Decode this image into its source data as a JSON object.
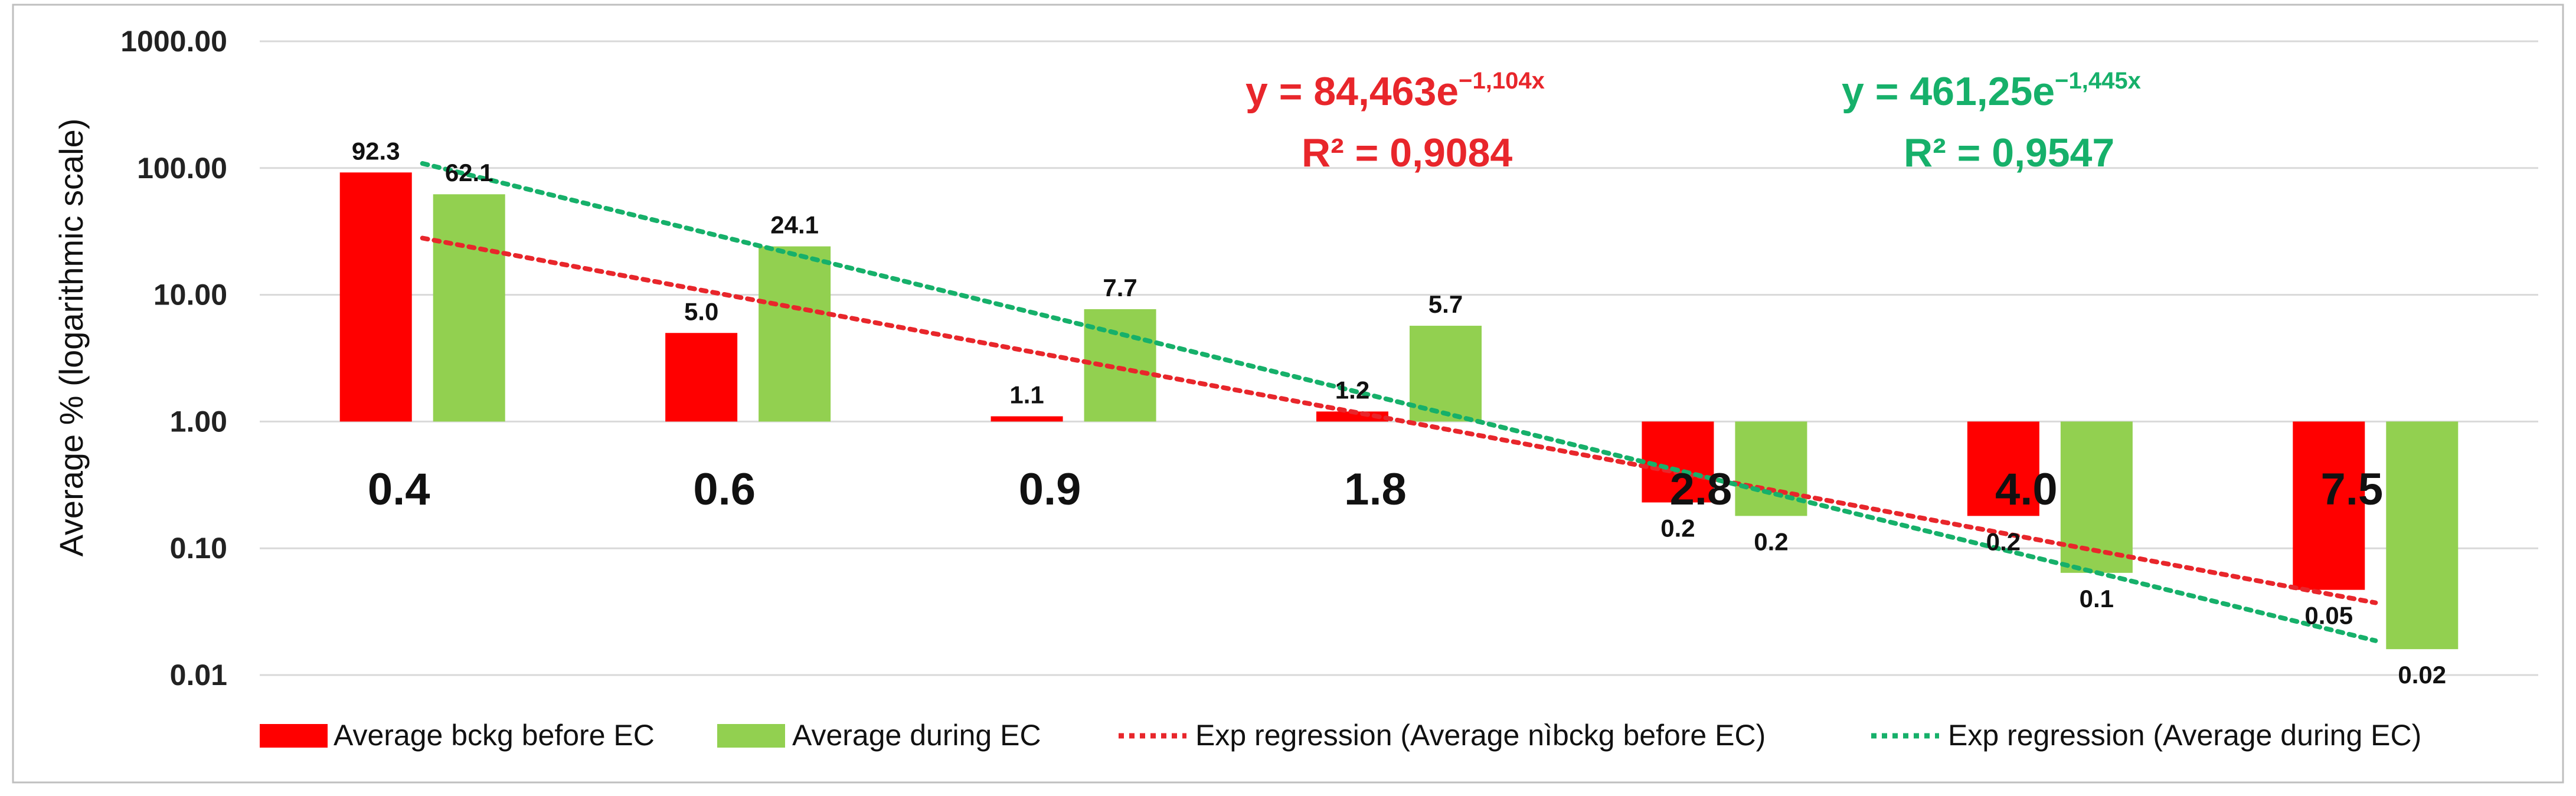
{
  "colors": {
    "before": "#ff0000",
    "during": "#92d050",
    "trend_before": "#e8262b",
    "trend_during": "#16b06a",
    "grid": "#d9d9d9",
    "frame": "#bfbfbf"
  },
  "chart_data": {
    "type": "bar",
    "scale": "log",
    "title": "",
    "xlabel": "",
    "ylabel": "Average % (logarithmic scale)",
    "ylim": [
      0.01,
      1000
    ],
    "baseline": 1,
    "y_ticks": [
      1000,
      100,
      10,
      1,
      0.1,
      0.01
    ],
    "y_tick_labels": [
      "1000.00",
      "100.00",
      "10.00",
      "1.00",
      "0.10",
      "0.01"
    ],
    "categories": [
      "0.4",
      "0.6",
      "0.9",
      "1.8",
      "2.8",
      "4.0",
      "7.5"
    ],
    "series": [
      {
        "key": "before",
        "name": "Average bckg before EC",
        "values": [
          92.3,
          5.0,
          1.1,
          1.2,
          0.23,
          0.18,
          0.047
        ],
        "labels": [
          "92.3",
          "5.0",
          "1.1",
          "1.2",
          "0.2",
          "0.2",
          "0.05"
        ]
      },
      {
        "key": "during",
        "name": "Average during EC",
        "values": [
          62.1,
          24.1,
          7.7,
          5.7,
          0.18,
          0.064,
          0.016
        ],
        "labels": [
          "62.1",
          "24.1",
          "7.7",
          "5.7",
          "0.2",
          "0.1",
          "0.02"
        ]
      }
    ],
    "trendlines": [
      {
        "key": "trend_before",
        "name": "Exp regression (Average nìbckg before EC)",
        "a": 84.463,
        "b": -1.104,
        "eq_main": "y = 84,463e",
        "eq_exp": "−1,104x",
        "r2": "R² = 0,9084"
      },
      {
        "key": "trend_during",
        "name": "Exp regression (Average during EC)",
        "a": 461.25,
        "b": -1.445,
        "eq_main": "y = 461,25e",
        "eq_exp": "−1,445x",
        "r2": "R² = 0,9547"
      }
    ],
    "grid": true,
    "legend_position": "bottom"
  }
}
